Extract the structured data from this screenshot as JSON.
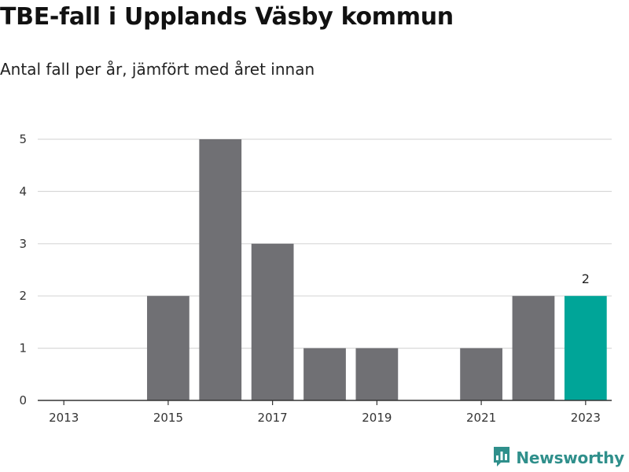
{
  "title": "TBE-fall i Upplands Väsby kommun",
  "subtitle": "Antal fall per år, jämfört med året innan",
  "brand": {
    "name": "Newsworthy",
    "icon": "newsworthy-logo-icon",
    "color": "#2f8f8b"
  },
  "colors": {
    "bar": "#707074",
    "highlight": "#00a598",
    "grid": "#d9d9d9",
    "axis": "#333333"
  },
  "chart_data": {
    "type": "bar",
    "title": "TBE-fall i Upplands Väsby kommun",
    "subtitle": "Antal fall per år, jämfört med året innan",
    "xlabel": "",
    "ylabel": "",
    "categories": [
      "2013",
      "2014",
      "2015",
      "2016",
      "2017",
      "2018",
      "2019",
      "2020",
      "2021",
      "2022",
      "2023"
    ],
    "values": [
      0,
      0,
      2,
      5,
      3,
      1,
      1,
      0,
      1,
      2,
      2
    ],
    "highlight_index": 10,
    "data_labels": [
      {
        "index": 10,
        "text": "2"
      }
    ],
    "x_tick_labels": [
      "2013",
      "2015",
      "2017",
      "2019",
      "2021",
      "2023"
    ],
    "y_ticks": [
      0,
      1,
      2,
      3,
      4,
      5
    ],
    "ylim": [
      0,
      5
    ],
    "grid": true,
    "legend": "none"
  }
}
